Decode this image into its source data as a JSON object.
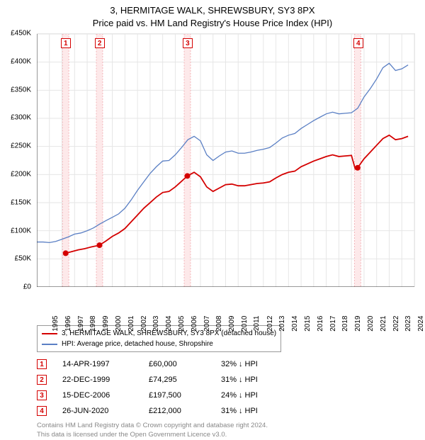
{
  "title_line1": "3, HERMITAGE WALK, SHREWSBURY, SY3 8PX",
  "title_line2": "Price paid vs. HM Land Registry's House Price Index (HPI)",
  "colors": {
    "property_line": "#d40000",
    "hpi_line": "#5a7fc4",
    "sale_band_fill": "#fde9ea",
    "sale_band_edge": "#f3b5b9",
    "grid": "#e6e6e6",
    "axis": "#333333",
    "text": "#000000",
    "footer_text": "#888888",
    "background": "#ffffff"
  },
  "chart": {
    "type": "line",
    "x_min": 1995,
    "x_max": 2025,
    "x_ticks": [
      1995,
      1996,
      1997,
      1998,
      1999,
      2000,
      2001,
      2002,
      2003,
      2004,
      2005,
      2006,
      2007,
      2008,
      2009,
      2010,
      2011,
      2012,
      2013,
      2014,
      2015,
      2016,
      2017,
      2018,
      2019,
      2020,
      2021,
      2022,
      2023,
      2024,
      2025
    ],
    "y_min": 0,
    "y_max": 450000,
    "y_ticks": [
      0,
      50000,
      100000,
      150000,
      200000,
      250000,
      300000,
      350000,
      400000,
      450000
    ],
    "y_tick_labels": [
      "£0",
      "£50K",
      "£100K",
      "£150K",
      "£200K",
      "£250K",
      "£300K",
      "£350K",
      "£400K",
      "£450K"
    ],
    "sale_band_width_years": 0.5,
    "hpi_series": [
      {
        "x": 1995.0,
        "y": 80000
      },
      {
        "x": 1995.5,
        "y": 80000
      },
      {
        "x": 1996.0,
        "y": 79000
      },
      {
        "x": 1996.5,
        "y": 81000
      },
      {
        "x": 1997.0,
        "y": 85000
      },
      {
        "x": 1997.5,
        "y": 89000
      },
      {
        "x": 1998.0,
        "y": 94000
      },
      {
        "x": 1998.5,
        "y": 96000
      },
      {
        "x": 1999.0,
        "y": 100000
      },
      {
        "x": 1999.5,
        "y": 105000
      },
      {
        "x": 2000.0,
        "y": 112000
      },
      {
        "x": 2000.5,
        "y": 118000
      },
      {
        "x": 2001.0,
        "y": 124000
      },
      {
        "x": 2001.5,
        "y": 130000
      },
      {
        "x": 2002.0,
        "y": 140000
      },
      {
        "x": 2002.5,
        "y": 155000
      },
      {
        "x": 2003.0,
        "y": 172000
      },
      {
        "x": 2003.5,
        "y": 187000
      },
      {
        "x": 2004.0,
        "y": 202000
      },
      {
        "x": 2004.5,
        "y": 214000
      },
      {
        "x": 2005.0,
        "y": 224000
      },
      {
        "x": 2005.5,
        "y": 225000
      },
      {
        "x": 2006.0,
        "y": 235000
      },
      {
        "x": 2006.5,
        "y": 248000
      },
      {
        "x": 2007.0,
        "y": 262000
      },
      {
        "x": 2007.5,
        "y": 268000
      },
      {
        "x": 2008.0,
        "y": 260000
      },
      {
        "x": 2008.5,
        "y": 235000
      },
      {
        "x": 2009.0,
        "y": 225000
      },
      {
        "x": 2009.5,
        "y": 233000
      },
      {
        "x": 2010.0,
        "y": 240000
      },
      {
        "x": 2010.5,
        "y": 242000
      },
      {
        "x": 2011.0,
        "y": 238000
      },
      {
        "x": 2011.5,
        "y": 238000
      },
      {
        "x": 2012.0,
        "y": 240000
      },
      {
        "x": 2012.5,
        "y": 243000
      },
      {
        "x": 2013.0,
        "y": 245000
      },
      {
        "x": 2013.5,
        "y": 248000
      },
      {
        "x": 2014.0,
        "y": 256000
      },
      {
        "x": 2014.5,
        "y": 265000
      },
      {
        "x": 2015.0,
        "y": 270000
      },
      {
        "x": 2015.5,
        "y": 273000
      },
      {
        "x": 2016.0,
        "y": 282000
      },
      {
        "x": 2016.5,
        "y": 289000
      },
      {
        "x": 2017.0,
        "y": 296000
      },
      {
        "x": 2017.5,
        "y": 302000
      },
      {
        "x": 2018.0,
        "y": 308000
      },
      {
        "x": 2018.5,
        "y": 311000
      },
      {
        "x": 2019.0,
        "y": 308000
      },
      {
        "x": 2019.5,
        "y": 309000
      },
      {
        "x": 2020.0,
        "y": 310000
      },
      {
        "x": 2020.5,
        "y": 318000
      },
      {
        "x": 2021.0,
        "y": 338000
      },
      {
        "x": 2021.5,
        "y": 353000
      },
      {
        "x": 2022.0,
        "y": 370000
      },
      {
        "x": 2022.5,
        "y": 390000
      },
      {
        "x": 2023.0,
        "y": 398000
      },
      {
        "x": 2023.5,
        "y": 385000
      },
      {
        "x": 2024.0,
        "y": 388000
      },
      {
        "x": 2024.5,
        "y": 395000
      }
    ],
    "property_series": [
      {
        "x": 1997.29,
        "y": 60000
      },
      {
        "x": 1997.8,
        "y": 63000
      },
      {
        "x": 1998.3,
        "y": 66000
      },
      {
        "x": 1998.8,
        "y": 68000
      },
      {
        "x": 1999.3,
        "y": 71000
      },
      {
        "x": 1999.98,
        "y": 74295
      },
      {
        "x": 2000.5,
        "y": 82000
      },
      {
        "x": 2001.0,
        "y": 90000
      },
      {
        "x": 2001.5,
        "y": 96000
      },
      {
        "x": 2002.0,
        "y": 104000
      },
      {
        "x": 2002.5,
        "y": 116000
      },
      {
        "x": 2003.0,
        "y": 128000
      },
      {
        "x": 2003.5,
        "y": 140000
      },
      {
        "x": 2004.0,
        "y": 150000
      },
      {
        "x": 2004.5,
        "y": 160000
      },
      {
        "x": 2005.0,
        "y": 168000
      },
      {
        "x": 2005.5,
        "y": 170000
      },
      {
        "x": 2006.0,
        "y": 178000
      },
      {
        "x": 2006.5,
        "y": 188000
      },
      {
        "x": 2006.96,
        "y": 197500
      },
      {
        "x": 2007.5,
        "y": 204000
      },
      {
        "x": 2008.0,
        "y": 196000
      },
      {
        "x": 2008.5,
        "y": 178000
      },
      {
        "x": 2009.0,
        "y": 170000
      },
      {
        "x": 2009.5,
        "y": 176000
      },
      {
        "x": 2010.0,
        "y": 182000
      },
      {
        "x": 2010.5,
        "y": 183000
      },
      {
        "x": 2011.0,
        "y": 180000
      },
      {
        "x": 2011.5,
        "y": 180000
      },
      {
        "x": 2012.0,
        "y": 182000
      },
      {
        "x": 2012.5,
        "y": 184000
      },
      {
        "x": 2013.0,
        "y": 185000
      },
      {
        "x": 2013.5,
        "y": 187000
      },
      {
        "x": 2014.0,
        "y": 194000
      },
      {
        "x": 2014.5,
        "y": 200000
      },
      {
        "x": 2015.0,
        "y": 204000
      },
      {
        "x": 2015.5,
        "y": 206000
      },
      {
        "x": 2016.0,
        "y": 214000
      },
      {
        "x": 2016.5,
        "y": 219000
      },
      {
        "x": 2017.0,
        "y": 224000
      },
      {
        "x": 2017.5,
        "y": 228000
      },
      {
        "x": 2018.0,
        "y": 232000
      },
      {
        "x": 2018.5,
        "y": 235000
      },
      {
        "x": 2019.0,
        "y": 232000
      },
      {
        "x": 2019.5,
        "y": 233000
      },
      {
        "x": 2020.0,
        "y": 234000
      },
      {
        "x": 2020.3,
        "y": 210000
      },
      {
        "x": 2020.49,
        "y": 212000
      },
      {
        "x": 2021.0,
        "y": 228000
      },
      {
        "x": 2021.5,
        "y": 240000
      },
      {
        "x": 2022.0,
        "y": 252000
      },
      {
        "x": 2022.5,
        "y": 264000
      },
      {
        "x": 2023.0,
        "y": 270000
      },
      {
        "x": 2023.5,
        "y": 262000
      },
      {
        "x": 2024.0,
        "y": 264000
      },
      {
        "x": 2024.5,
        "y": 268000
      }
    ],
    "sale_events": [
      {
        "n": "1",
        "year": 1997.29,
        "price": 60000
      },
      {
        "n": "2",
        "year": 1999.98,
        "price": 74295
      },
      {
        "n": "3",
        "year": 2006.96,
        "price": 197500
      },
      {
        "n": "4",
        "year": 2020.49,
        "price": 212000
      }
    ],
    "label_fontsize": 10,
    "title_fontsize": 13,
    "line_width_property": 1.8,
    "line_width_hpi": 1.3,
    "marker_radius": 4
  },
  "legend": {
    "property": "3, HERMITAGE WALK, SHREWSBURY, SY3 8PX (detached house)",
    "hpi": "HPI: Average price, detached house, Shropshire"
  },
  "sales_table": {
    "rows": [
      {
        "n": "1",
        "date": "14-APR-1997",
        "price": "£60,000",
        "diff_pct": "32%",
        "diff_label": "HPI"
      },
      {
        "n": "2",
        "date": "22-DEC-1999",
        "price": "£74,295",
        "diff_pct": "31%",
        "diff_label": "HPI"
      },
      {
        "n": "3",
        "date": "15-DEC-2006",
        "price": "£197,500",
        "diff_pct": "24%",
        "diff_label": "HPI"
      },
      {
        "n": "4",
        "date": "26-JUN-2020",
        "price": "£212,000",
        "diff_pct": "31%",
        "diff_label": "HPI"
      }
    ],
    "arrow_glyph": "↓"
  },
  "footer_line1": "Contains HM Land Registry data © Crown copyright and database right 2024.",
  "footer_line2": "This data is licensed under the Open Government Licence v3.0."
}
